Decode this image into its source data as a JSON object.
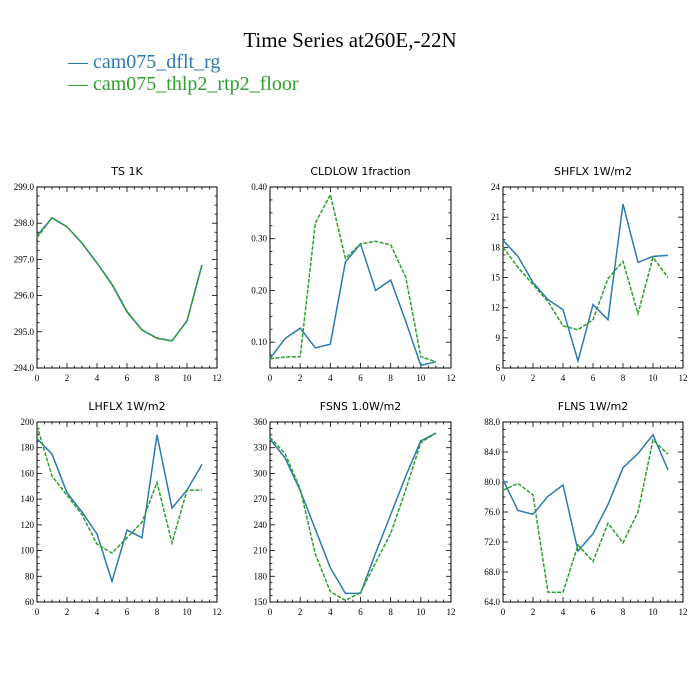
{
  "title": "Time Series at260E,-22N",
  "legend": [
    {
      "name": "cam075_dflt_rg",
      "color": "#2b7bb0"
    },
    {
      "name": "cam075_thlp2_rtp2_floor",
      "color": "#2ca02c"
    }
  ],
  "chart_data": [
    {
      "type": "line",
      "title": "TS   1K",
      "xlim": [
        0,
        12
      ],
      "xticks": [
        "0",
        "2",
        "4",
        "6",
        "8",
        "10",
        "12"
      ],
      "ylim": [
        294,
        299
      ],
      "yticks": [
        "294.0",
        "295.0",
        "296.0",
        "297.0",
        "298.0",
        "299.0"
      ],
      "x": [
        0,
        1,
        2,
        3,
        4,
        5,
        6,
        7,
        8,
        9,
        10,
        11
      ],
      "series": [
        {
          "name": "cam075_dflt_rg",
          "values": [
            297.65,
            298.15,
            297.9,
            297.45,
            296.9,
            296.3,
            295.55,
            295.05,
            294.82,
            294.75,
            295.3,
            296.85
          ]
        },
        {
          "name": "cam075_thlp2_rtp2_floor",
          "values": [
            297.6,
            298.15,
            297.9,
            297.45,
            296.9,
            296.32,
            295.57,
            295.05,
            294.83,
            294.75,
            295.3,
            296.85
          ]
        }
      ]
    },
    {
      "type": "line",
      "title": "CLDLOW   1fraction",
      "xlim": [
        0,
        12
      ],
      "xticks": [
        "0",
        "2",
        "4",
        "6",
        "8",
        "10",
        "12"
      ],
      "ylim": [
        0.05,
        0.4
      ],
      "yticks": [
        "0.10",
        "0.20",
        "0.30",
        "0.40"
      ],
      "x": [
        0,
        1,
        2,
        3,
        4,
        5,
        6,
        7,
        8,
        9,
        10,
        11
      ],
      "series": [
        {
          "name": "cam075_dflt_rg",
          "values": [
            0.068,
            0.107,
            0.127,
            0.089,
            0.096,
            0.255,
            0.29,
            0.2,
            0.22,
            0.14,
            0.055,
            0.062
          ]
        },
        {
          "name": "cam075_thlp2_rtp2_floor",
          "values": [
            0.068,
            0.071,
            0.072,
            0.33,
            0.385,
            0.262,
            0.29,
            0.295,
            0.288,
            0.225,
            0.072,
            0.062
          ]
        }
      ]
    },
    {
      "type": "line",
      "title": "SHFLX   1W/m2",
      "xlim": [
        0,
        12
      ],
      "xticks": [
        "0",
        "2",
        "4",
        "6",
        "8",
        "10",
        "12"
      ],
      "ylim": [
        6,
        24
      ],
      "yticks": [
        "6",
        "9",
        "12",
        "15",
        "18",
        "21",
        "24"
      ],
      "x": [
        0,
        1,
        2,
        3,
        4,
        5,
        6,
        7,
        8,
        9,
        10,
        11
      ],
      "series": [
        {
          "name": "cam075_dflt_rg",
          "values": [
            18.7,
            17.1,
            14.5,
            12.8,
            11.8,
            6.7,
            12.3,
            10.8,
            22.3,
            16.5,
            17.1,
            17.2
          ]
        },
        {
          "name": "cam075_thlp2_rtp2_floor",
          "values": [
            18.0,
            16.0,
            14.3,
            12.6,
            10.2,
            9.8,
            10.8,
            14.9,
            16.6,
            11.4,
            17.0,
            15.0
          ]
        }
      ]
    },
    {
      "type": "line",
      "title": "LHFLX   1W/m2",
      "xlim": [
        0,
        12
      ],
      "xticks": [
        "0",
        "2",
        "4",
        "6",
        "8",
        "10",
        "12"
      ],
      "ylim": [
        60,
        200
      ],
      "yticks": [
        "60",
        "80",
        "100",
        "120",
        "140",
        "160",
        "180",
        "200"
      ],
      "x": [
        0,
        1,
        2,
        3,
        4,
        5,
        6,
        7,
        8,
        9,
        10,
        11
      ],
      "series": [
        {
          "name": "cam075_dflt_rg",
          "values": [
            187,
            175,
            145,
            130,
            113,
            76,
            116,
            110,
            190,
            133,
            147,
            167
          ]
        },
        {
          "name": "cam075_thlp2_rtp2_floor",
          "values": [
            197,
            158,
            143,
            128,
            105,
            98,
            110,
            122,
            153,
            106,
            147,
            147
          ]
        }
      ]
    },
    {
      "type": "line",
      "title": "FSNS   1.0W/m2",
      "xlim": [
        0,
        12
      ],
      "xticks": [
        "0",
        "2",
        "4",
        "6",
        "8",
        "10",
        "12"
      ],
      "ylim": [
        150,
        360
      ],
      "yticks": [
        "150",
        "180",
        "210",
        "240",
        "270",
        "300",
        "330",
        "360"
      ],
      "x": [
        0,
        1,
        2,
        3,
        4,
        5,
        6,
        7,
        8,
        9,
        10,
        11
      ],
      "series": [
        {
          "name": "cam075_dflt_rg",
          "values": [
            340,
            318,
            280,
            235,
            190,
            160,
            160,
            207,
            252,
            297,
            338,
            347
          ]
        },
        {
          "name": "cam075_thlp2_rtp2_floor",
          "values": [
            342,
            323,
            282,
            206,
            162,
            152,
            161,
            196,
            230,
            281,
            336,
            347
          ]
        }
      ]
    },
    {
      "type": "line",
      "title": "FLNS   1W/m2",
      "xlim": [
        0,
        12
      ],
      "xticks": [
        "0",
        "2",
        "4",
        "6",
        "8",
        "10",
        "12"
      ],
      "ylim": [
        64,
        88
      ],
      "yticks": [
        "64.0",
        "68.0",
        "72.0",
        "76.0",
        "80.0",
        "84.0",
        "88.0"
      ],
      "x": [
        0,
        1,
        2,
        3,
        4,
        5,
        6,
        7,
        8,
        9,
        10,
        11
      ],
      "series": [
        {
          "name": "cam075_dflt_rg",
          "values": [
            80.3,
            76.2,
            75.7,
            78.1,
            79.6,
            70.8,
            73.1,
            77.0,
            81.9,
            83.8,
            86.3,
            81.6
          ]
        },
        {
          "name": "cam075_thlp2_rtp2_floor",
          "values": [
            78.9,
            79.8,
            78.3,
            65.3,
            65.3,
            71.6,
            69.4,
            74.5,
            71.9,
            76.0,
            85.6,
            83.7
          ]
        }
      ]
    }
  ]
}
